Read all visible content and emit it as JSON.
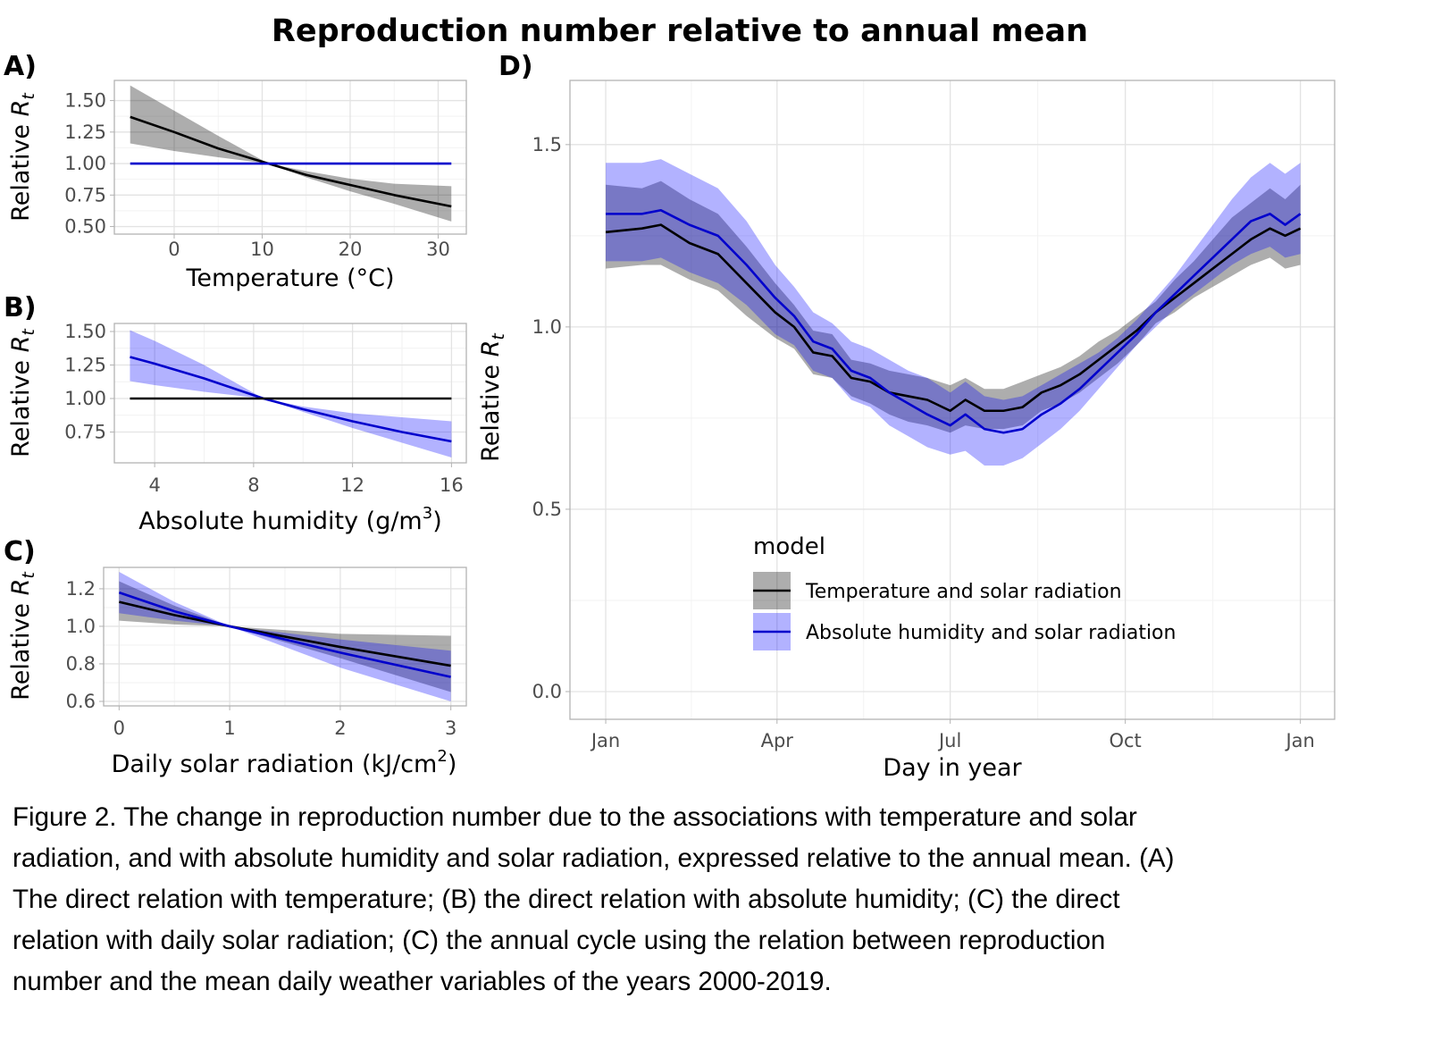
{
  "title": "Reproduction number relative to annual mean",
  "colors": {
    "temp_model": "#000000",
    "humid_model": "#0000cc",
    "temp_band": "rgba(0,0,0,0.32)",
    "humid_band": "rgba(0,0,255,0.3)"
  },
  "legend": {
    "title": "model",
    "items": [
      "Temperature and solar radiation",
      "Absolute humidity and solar radiation"
    ]
  },
  "chart_data": [
    {
      "panel": "A)",
      "type": "line",
      "xlabel": "Temperature (°C)",
      "ylabel": {
        "main": "Relative",
        "symbol": "R",
        "sub": "t"
      },
      "xlim": [
        -6.8,
        33.2
      ],
      "ylim": [
        0.44,
        1.66
      ],
      "xticks": [
        0,
        10,
        20,
        30
      ],
      "xtick_labels": [
        "0",
        "10",
        "20",
        "30"
      ],
      "yticks": [
        0.5,
        0.75,
        1.0,
        1.25,
        1.5
      ],
      "ytick_labels": [
        "0.50",
        "0.75",
        "1.00",
        "1.25",
        "1.50"
      ],
      "grid": true,
      "series": [
        {
          "model": 0,
          "x": [
            -5,
            0,
            5,
            10.7,
            15,
            20,
            25,
            31.5
          ],
          "y": [
            1.37,
            1.25,
            1.12,
            1.0,
            0.91,
            0.83,
            0.75,
            0.66
          ],
          "lower": [
            1.16,
            1.1,
            1.05,
            1.0,
            0.89,
            0.78,
            0.68,
            0.54
          ],
          "upper": [
            1.62,
            1.42,
            1.22,
            1.0,
            0.94,
            0.88,
            0.84,
            0.82
          ]
        },
        {
          "model": 1,
          "x": [
            -5,
            31.5
          ],
          "y": [
            1.0,
            1.0
          ]
        }
      ]
    },
    {
      "panel": "B)",
      "type": "line",
      "xlabel": {
        "main": "Absolute humidity (g/m",
        "sup": "3",
        "end": ")"
      },
      "ylabel": {
        "main": "Relative",
        "symbol": "R",
        "sub": "t"
      },
      "xlim": [
        2.37,
        16.6
      ],
      "ylim": [
        0.52,
        1.56
      ],
      "xticks": [
        4,
        8,
        12,
        16
      ],
      "xtick_labels": [
        "4",
        "8",
        "12",
        "16"
      ],
      "yticks": [
        0.75,
        1.0,
        1.25,
        1.5
      ],
      "ytick_labels": [
        "0.75",
        "1.00",
        "1.25",
        "1.50"
      ],
      "grid": true,
      "series": [
        {
          "model": 1,
          "x": [
            3,
            4,
            6,
            8.4,
            10,
            12,
            14,
            16
          ],
          "y": [
            1.31,
            1.26,
            1.15,
            1.0,
            0.92,
            0.83,
            0.75,
            0.68
          ],
          "lower": [
            1.13,
            1.1,
            1.05,
            1.0,
            0.9,
            0.78,
            0.67,
            0.56
          ],
          "upper": [
            1.51,
            1.43,
            1.25,
            1.0,
            0.94,
            0.89,
            0.86,
            0.83
          ]
        },
        {
          "model": 0,
          "x": [
            3,
            16
          ],
          "y": [
            1.0,
            1.0
          ]
        }
      ]
    },
    {
      "panel": "C)",
      "type": "line",
      "xlabel": {
        "main": "Daily solar radiation (kJ/cm",
        "sup": "2",
        "end": ")"
      },
      "ylabel": {
        "main": "Relative",
        "symbol": "R",
        "sub": "t"
      },
      "xlim": [
        -0.14,
        3.14
      ],
      "ylim": [
        0.576,
        1.314
      ],
      "xticks": [
        0,
        1,
        2,
        3
      ],
      "xtick_labels": [
        "0",
        "1",
        "2",
        "3"
      ],
      "yticks": [
        0.6,
        0.8,
        1.0,
        1.2
      ],
      "ytick_labels": [
        "0.6",
        "0.8",
        "1.0",
        "1.2"
      ],
      "grid": true,
      "series": [
        {
          "model": 0,
          "x": [
            0,
            0.5,
            1,
            2,
            3
          ],
          "y": [
            1.13,
            1.06,
            1.0,
            0.89,
            0.79
          ],
          "lower": [
            1.03,
            1.01,
            1.0,
            0.83,
            0.65
          ],
          "upper": [
            1.24,
            1.11,
            1.0,
            0.96,
            0.95
          ]
        },
        {
          "model": 1,
          "x": [
            0,
            0.5,
            1,
            2,
            3
          ],
          "y": [
            1.18,
            1.08,
            1.0,
            0.86,
            0.73
          ],
          "lower": [
            1.07,
            1.03,
            1.0,
            0.78,
            0.6
          ],
          "upper": [
            1.29,
            1.13,
            1.0,
            0.93,
            0.87
          ]
        }
      ]
    },
    {
      "panel": "D)",
      "type": "line",
      "xlabel": "Day in year",
      "ylabel": {
        "main": "Relative",
        "symbol": "R",
        "sub": "t"
      },
      "xlim": [
        -17.8,
        384
      ],
      "ylim": [
        -0.076,
        1.676
      ],
      "xticks": [
        1,
        91,
        182,
        274,
        366
      ],
      "xtick_labels": [
        "Jan",
        "Apr",
        "Jul",
        "Oct",
        "Jan"
      ],
      "yticks": [
        0.0,
        0.5,
        1.0,
        1.5
      ],
      "ytick_labels": [
        "0.0",
        "0.5",
        "1.0",
        "1.5"
      ],
      "grid": true,
      "legend_position": "inside-bottom",
      "series": [
        {
          "model": 0,
          "x": [
            1,
            20,
            30,
            45,
            60,
            75,
            90,
            100,
            110,
            120,
            130,
            140,
            150,
            160,
            170,
            182,
            190,
            200,
            210,
            220,
            230,
            240,
            250,
            260,
            270,
            280,
            290,
            300,
            310,
            320,
            330,
            340,
            350,
            358,
            366
          ],
          "y": [
            1.26,
            1.27,
            1.28,
            1.23,
            1.2,
            1.12,
            1.04,
            1.0,
            0.93,
            0.92,
            0.86,
            0.85,
            0.82,
            0.81,
            0.8,
            0.77,
            0.8,
            0.77,
            0.77,
            0.78,
            0.82,
            0.84,
            0.87,
            0.91,
            0.95,
            0.99,
            1.04,
            1.08,
            1.12,
            1.16,
            1.2,
            1.24,
            1.27,
            1.25,
            1.27
          ],
          "lower": [
            1.16,
            1.17,
            1.17,
            1.13,
            1.1,
            1.03,
            0.97,
            0.94,
            0.87,
            0.86,
            0.81,
            0.79,
            0.76,
            0.74,
            0.73,
            0.71,
            0.73,
            0.72,
            0.72,
            0.73,
            0.77,
            0.79,
            0.82,
            0.86,
            0.9,
            0.95,
            1.01,
            1.04,
            1.08,
            1.11,
            1.14,
            1.17,
            1.19,
            1.16,
            1.17
          ],
          "upper": [
            1.39,
            1.38,
            1.4,
            1.35,
            1.31,
            1.22,
            1.12,
            1.06,
            0.99,
            0.98,
            0.91,
            0.9,
            0.88,
            0.87,
            0.86,
            0.84,
            0.86,
            0.83,
            0.83,
            0.85,
            0.87,
            0.89,
            0.92,
            0.96,
            0.99,
            1.03,
            1.07,
            1.13,
            1.18,
            1.24,
            1.3,
            1.34,
            1.38,
            1.35,
            1.39
          ]
        },
        {
          "model": 1,
          "x": [
            1,
            20,
            30,
            45,
            60,
            75,
            90,
            100,
            110,
            120,
            130,
            140,
            150,
            160,
            170,
            182,
            190,
            200,
            210,
            220,
            230,
            240,
            250,
            260,
            270,
            280,
            290,
            300,
            310,
            320,
            330,
            340,
            350,
            358,
            366
          ],
          "y": [
            1.31,
            1.31,
            1.32,
            1.28,
            1.25,
            1.17,
            1.08,
            1.03,
            0.96,
            0.94,
            0.88,
            0.86,
            0.82,
            0.79,
            0.76,
            0.73,
            0.76,
            0.72,
            0.71,
            0.72,
            0.76,
            0.79,
            0.83,
            0.88,
            0.93,
            0.98,
            1.04,
            1.09,
            1.14,
            1.19,
            1.24,
            1.29,
            1.31,
            1.28,
            1.31
          ],
          "lower": [
            1.18,
            1.18,
            1.19,
            1.15,
            1.12,
            1.06,
            0.98,
            0.95,
            0.88,
            0.86,
            0.8,
            0.78,
            0.73,
            0.7,
            0.67,
            0.65,
            0.66,
            0.62,
            0.62,
            0.64,
            0.68,
            0.72,
            0.77,
            0.83,
            0.89,
            0.95,
            1.0,
            1.05,
            1.09,
            1.13,
            1.17,
            1.2,
            1.22,
            1.19,
            1.2
          ],
          "upper": [
            1.45,
            1.45,
            1.46,
            1.42,
            1.38,
            1.29,
            1.17,
            1.11,
            1.04,
            1.01,
            0.96,
            0.94,
            0.91,
            0.88,
            0.86,
            0.82,
            0.85,
            0.81,
            0.8,
            0.81,
            0.84,
            0.87,
            0.9,
            0.93,
            0.97,
            1.02,
            1.08,
            1.14,
            1.21,
            1.28,
            1.35,
            1.41,
            1.45,
            1.42,
            1.45
          ]
        }
      ]
    }
  ],
  "caption": [
    "Figure 2. The change in reproduction number due to the associations with temperature and solar",
    "radiation, and with absolute humidity and solar radiation, expressed relative to the annual mean. (A)",
    "The direct relation with temperature; (B) the direct relation with absolute humidity; (C) the direct",
    "relation with daily solar radiation; (C) the annual cycle using the relation between reproduction",
    "number and the mean daily weather variables of the years 2000-2019."
  ]
}
